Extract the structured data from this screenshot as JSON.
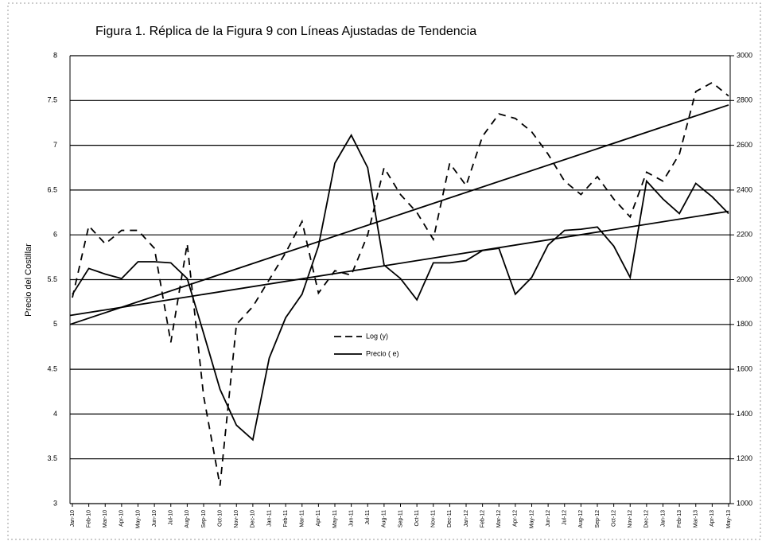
{
  "chart_data": {
    "type": "line",
    "title": "Figura 1. Réplica de la Figura 9 con Líneas Ajustadas de Tendencia",
    "y_label": "Precio del Costillar",
    "categories": [
      "Jan-10",
      "Feb-10",
      "Mar-10",
      "Apr-10",
      "May-10",
      "Jun-10",
      "Jul-10",
      "Aug-10",
      "Sep-10",
      "Oct-10",
      "Nov-10",
      "Dec-10",
      "Jan-11",
      "Feb-11",
      "Mar-11",
      "Apr-11",
      "May-11",
      "Jun-11",
      "Jul-11",
      "Aug-11",
      "Sep-11",
      "Oct-11",
      "Nov-11",
      "Dec-11",
      "Jan-12",
      "Feb-12",
      "Mar-12",
      "Apr-12",
      "May-12",
      "Jun-12",
      "Jul-12",
      "Aug-12",
      "Sep-12",
      "Oct-12",
      "Nov-12",
      "Dec-12",
      "Jan-13",
      "Feb-13",
      "Mar-13",
      "Apr-13",
      "May-13"
    ],
    "series": [
      {
        "name": "Log (y)",
        "color": "#000000",
        "dash": true,
        "axis": "y",
        "values": [
          5.3,
          6.1,
          5.9,
          6.05,
          6.05,
          5.85,
          4.8,
          5.9,
          4.2,
          3.2,
          5.0,
          5.2,
          5.5,
          5.8,
          6.15,
          5.35,
          5.6,
          5.55,
          6.0,
          6.75,
          6.45,
          6.25,
          5.95,
          6.8,
          6.55,
          7.1,
          7.35,
          7.3,
          7.15,
          6.9,
          6.6,
          6.45,
          6.65,
          6.4,
          6.2,
          6.7,
          6.6,
          6.9,
          7.6,
          7.7,
          7.55
        ]
      },
      {
        "name": "Precio ( e)",
        "color": "#000000",
        "dash": false,
        "axis": "y2",
        "values": [
          1934,
          2050,
          2025,
          2005,
          2080,
          2080,
          2075,
          2005,
          1760,
          1510,
          1350,
          1285,
          1650,
          1830,
          1935,
          2150,
          2520,
          2645,
          2500,
          2065,
          2005,
          1910,
          2075,
          2075,
          2085,
          2130,
          2140,
          1935,
          2010,
          2155,
          2220,
          2225,
          2235,
          2150,
          2010,
          2440,
          2360,
          2295,
          2430,
          2370,
          2295
        ]
      }
    ],
    "trend_lines": [
      {
        "axis": "y",
        "values": [
          5.0,
          7.45
        ]
      },
      {
        "axis": "y2",
        "values": [
          1840,
          2305
        ]
      }
    ],
    "ylim": [
      3,
      8
    ],
    "yticks": [
      3,
      3.5,
      4,
      4.5,
      5,
      5.5,
      6,
      6.5,
      7,
      7.5,
      8
    ],
    "y2lim": [
      1000,
      3000
    ],
    "y2ticks": [
      1000,
      1200,
      1400,
      1600,
      1800,
      2000,
      2200,
      2400,
      2600,
      2800,
      3000
    ],
    "grid": true
  }
}
